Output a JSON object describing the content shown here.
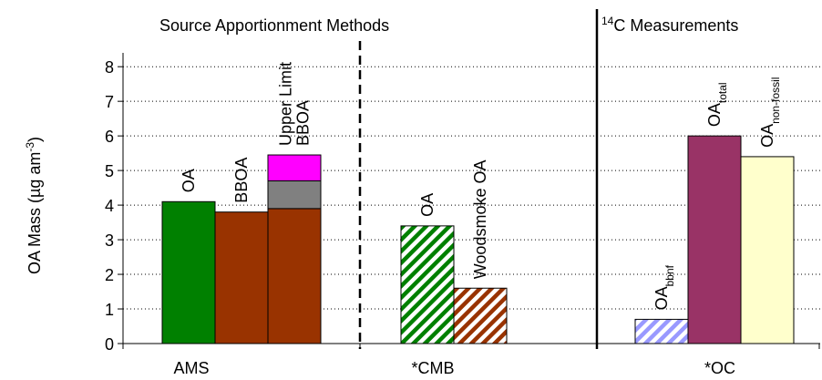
{
  "chart_data": {
    "type": "bar",
    "headers": [
      {
        "sup": "14",
        "main": "C Measurements"
      },
      {
        "main": "Source Apportionment Methods"
      }
    ],
    "ylabel": {
      "main": "OA Mass (µg am",
      "sup": "-3",
      "end": ")"
    },
    "categories": [
      "AMS",
      "*CMB",
      "*OC"
    ],
    "ylim": [
      0,
      8.4
    ],
    "yticks": [
      0,
      1,
      2,
      3,
      4,
      5,
      6,
      7,
      8
    ],
    "grid": true,
    "bars": [
      {
        "group": 0,
        "label": [
          {
            "main": "OA"
          }
        ],
        "values": [
          4.1
        ],
        "colors": [
          "#008000"
        ],
        "hatch": false
      },
      {
        "group": 0,
        "label": [
          {
            "main": "BBOA"
          }
        ],
        "values": [
          3.8
        ],
        "colors": [
          "#993300"
        ],
        "hatch": false
      },
      {
        "group": 0,
        "label": [
          {
            "main": "Upper Limit"
          },
          {
            "main": "BBOA"
          }
        ],
        "values": [
          3.9,
          0.8,
          0.75
        ],
        "colors": [
          "#993300",
          "#808080",
          "#ff00ff"
        ],
        "hatch": false
      },
      {
        "group": 1,
        "label": [
          {
            "main": "OA"
          }
        ],
        "values": [
          3.4
        ],
        "colors": [
          "#008000"
        ],
        "hatch": true
      },
      {
        "group": 1,
        "label": [
          {
            "main": "Woodsmoke OA"
          }
        ],
        "values": [
          1.6
        ],
        "colors": [
          "#993300"
        ],
        "hatch": true
      },
      {
        "group": 2,
        "label": [
          {
            "main": "OA",
            "sub": "bbnf"
          }
        ],
        "values": [
          0.7
        ],
        "colors": [
          "#9999ff"
        ],
        "hatch": true
      },
      {
        "group": 2,
        "label": [
          {
            "main": "OA",
            "sub": "total"
          }
        ],
        "values": [
          6.0
        ],
        "colors": [
          "#993366"
        ],
        "hatch": false
      },
      {
        "group": 2,
        "label": [
          {
            "main": "OA",
            "sub": "non-fossil"
          }
        ],
        "values": [
          5.4
        ],
        "colors": [
          "#ffffcc"
        ],
        "hatch": false
      }
    ]
  }
}
